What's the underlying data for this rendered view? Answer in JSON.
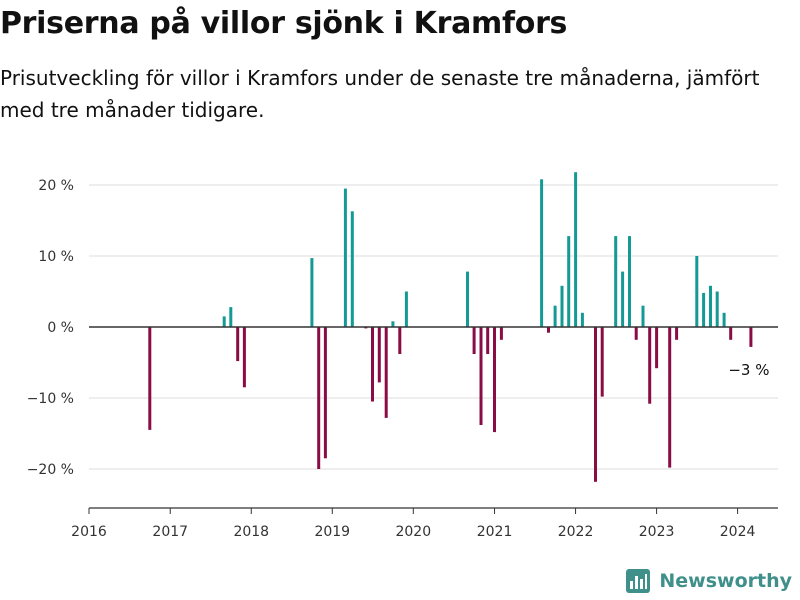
{
  "title": "Priserna på villor sjönk i Kramfors",
  "subtitle": "Prisutveckling för villor i Kramfors under de senaste tre månaderna, jämfört med tre månader tidigare.",
  "brand": {
    "name": "Newsworthy",
    "logo_icon": "bar-chart-logo-icon"
  },
  "colors": {
    "positive": "#149a95",
    "negative": "#8a0c45",
    "zero_line": "#333333",
    "grid": "#dddddd"
  },
  "chart_data": {
    "type": "bar",
    "title": "Priserna på villor sjönk i Kramfors",
    "xlabel": "",
    "ylabel": "",
    "ylim": [
      -25,
      25
    ],
    "xlim": [
      "2016-01-01",
      "2024-07-01"
    ],
    "y_ticks": [
      20,
      10,
      0,
      -10,
      -20
    ],
    "y_tick_labels": [
      "20 %",
      "10 %",
      "0 %",
      "−10 %",
      "−20 %"
    ],
    "x_ticks": [
      "2016-01-01",
      "2017-01-01",
      "2018-01-01",
      "2019-01-01",
      "2020-01-01",
      "2021-01-01",
      "2022-01-01",
      "2023-01-01",
      "2024-01-01"
    ],
    "x_tick_labels": [
      "2016",
      "2017",
      "2018",
      "2019",
      "2020",
      "2021",
      "2022",
      "2023",
      "2024"
    ],
    "grid": true,
    "annotation": {
      "text": "−3 %",
      "target_date": "2024-03-01"
    },
    "x": [
      "2016-10-01",
      "2017-09-01",
      "2017-10-01",
      "2017-11-01",
      "2017-12-01",
      "2018-10-01",
      "2018-11-01",
      "2018-12-01",
      "2019-03-01",
      "2019-04-01",
      "2019-06-01",
      "2019-07-01",
      "2019-08-01",
      "2019-09-01",
      "2019-10-01",
      "2019-11-01",
      "2019-12-01",
      "2020-09-01",
      "2020-10-01",
      "2020-11-01",
      "2020-12-01",
      "2021-01-01",
      "2021-02-01",
      "2021-08-01",
      "2021-09-01",
      "2021-10-01",
      "2021-11-01",
      "2021-12-01",
      "2022-01-01",
      "2022-02-01",
      "2022-04-01",
      "2022-05-01",
      "2022-07-01",
      "2022-08-01",
      "2022-09-01",
      "2022-10-01",
      "2022-11-01",
      "2022-12-01",
      "2023-01-01",
      "2023-03-01",
      "2023-04-01",
      "2023-07-01",
      "2023-08-01",
      "2023-09-01",
      "2023-10-01",
      "2023-11-01",
      "2023-12-01",
      "2024-03-01"
    ],
    "values": [
      -14.5,
      1.5,
      2.8,
      -4.8,
      -8.5,
      9.7,
      -20,
      -18.5,
      19.5,
      16.3,
      -0.2,
      -10.5,
      -7.8,
      -12.8,
      0.8,
      -3.8,
      5,
      7.8,
      -3.8,
      -13.8,
      -3.8,
      -14.8,
      -1.8,
      20.8,
      -0.8,
      3,
      5.8,
      12.8,
      21.8,
      2,
      -21.8,
      -9.8,
      12.8,
      7.8,
      12.8,
      -1.8,
      3,
      -10.8,
      -5.8,
      -19.8,
      -1.8,
      10,
      4.8,
      5.8,
      5,
      2,
      -1.8,
      -2.8
    ]
  }
}
